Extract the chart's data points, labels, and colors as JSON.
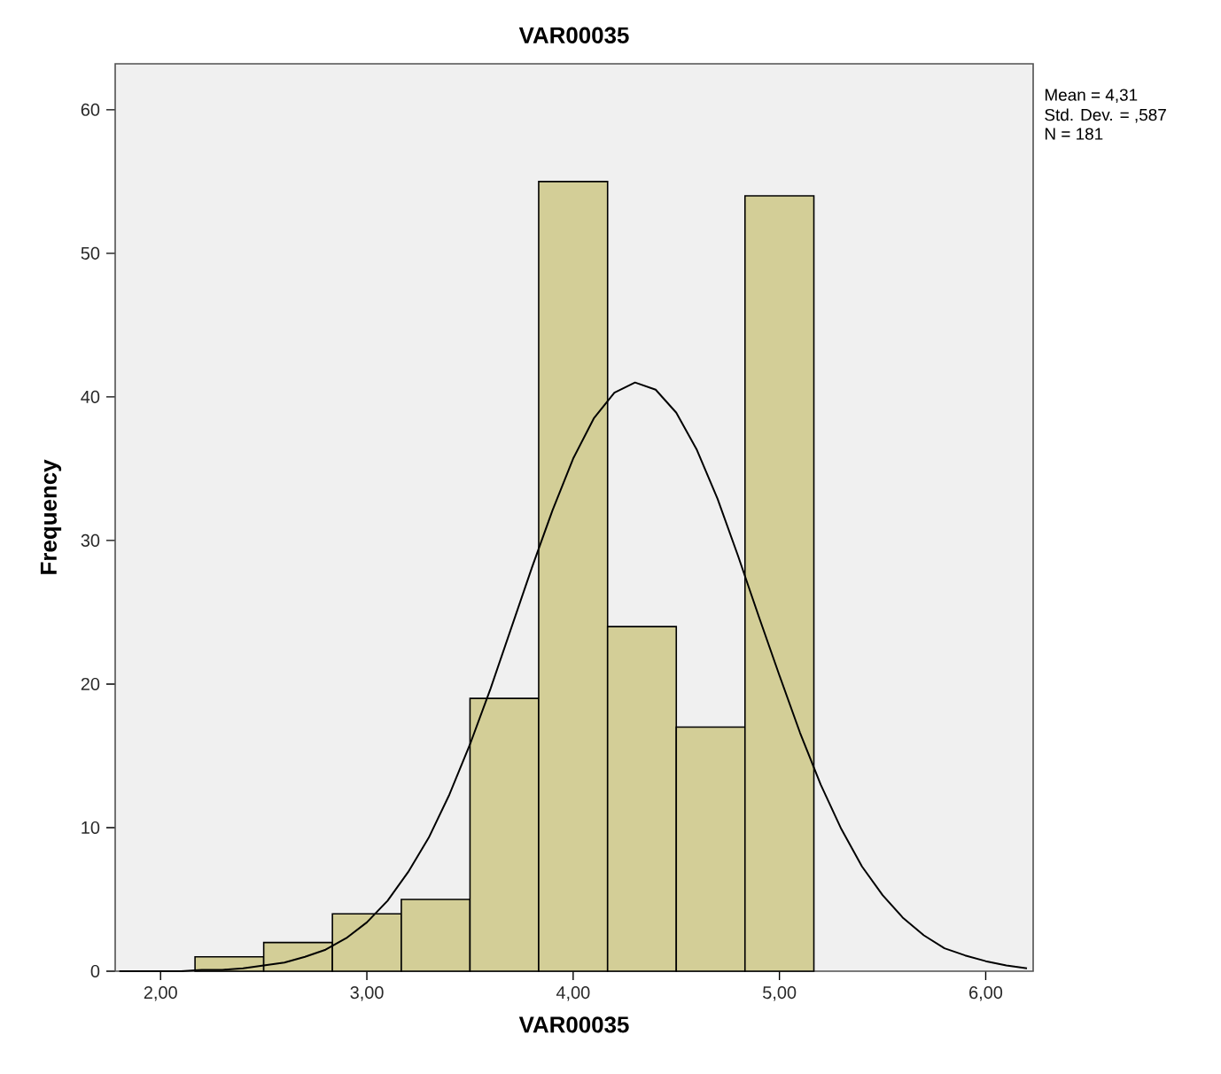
{
  "chart_data": {
    "type": "histogram",
    "title": "VAR00035",
    "xlabel": "VAR00035",
    "ylabel": "Frequency",
    "bins": [
      2.167,
      2.5,
      2.833,
      3.167,
      3.5,
      3.833,
      4.167,
      4.5,
      4.833,
      5.167
    ],
    "values": [
      1,
      2,
      4,
      5,
      19,
      55,
      24,
      17,
      54
    ],
    "color": "#d3ce97",
    "series": [
      {
        "type": "line",
        "color": "#000000",
        "x": [
          1.8,
          1.9,
          2.0,
          2.1,
          2.2,
          2.3,
          2.4,
          2.5,
          2.6,
          2.7,
          2.8,
          2.9,
          3.0,
          3.1,
          3.2,
          3.3,
          3.4,
          3.5,
          3.6,
          3.7,
          3.8,
          3.9,
          4.0,
          4.1,
          4.2,
          4.3,
          4.4,
          4.5,
          4.6,
          4.7,
          4.8,
          4.9,
          5.0,
          5.1,
          5.2,
          5.3,
          5.4,
          5.5,
          5.6,
          5.7,
          5.8,
          5.9,
          6.0,
          6.1,
          6.2
        ],
        "values": [
          0.0,
          0.0,
          0.0,
          0.0,
          0.1,
          0.1,
          0.2,
          0.4,
          0.6,
          1.0,
          1.5,
          2.3,
          3.4,
          4.9,
          6.9,
          9.3,
          12.3,
          15.8,
          19.7,
          23.9,
          28.1,
          32.1,
          35.7,
          38.5,
          40.3,
          41.0,
          40.5,
          38.9,
          36.3,
          32.9,
          28.9,
          24.7,
          20.6,
          16.6,
          13.0,
          9.9,
          7.3,
          5.3,
          3.7,
          2.5,
          1.6,
          1.1,
          0.7,
          0.4,
          0.2
        ]
      }
    ],
    "xlim": [
      1.78,
      6.23
    ],
    "ylim": [
      0,
      63.2
    ],
    "xticks": [
      {
        "value": 2,
        "label": "2,00"
      },
      {
        "value": 3,
        "label": "3,00"
      },
      {
        "value": 4,
        "label": "4,00"
      },
      {
        "value": 5,
        "label": "5,00"
      },
      {
        "value": 6,
        "label": "6,00"
      }
    ],
    "yticks": [
      0,
      10,
      20,
      30,
      40,
      50,
      60
    ],
    "annotations": [
      "Mean = 4,31",
      "Std. Dev. = ,587",
      "N = 181"
    ]
  }
}
